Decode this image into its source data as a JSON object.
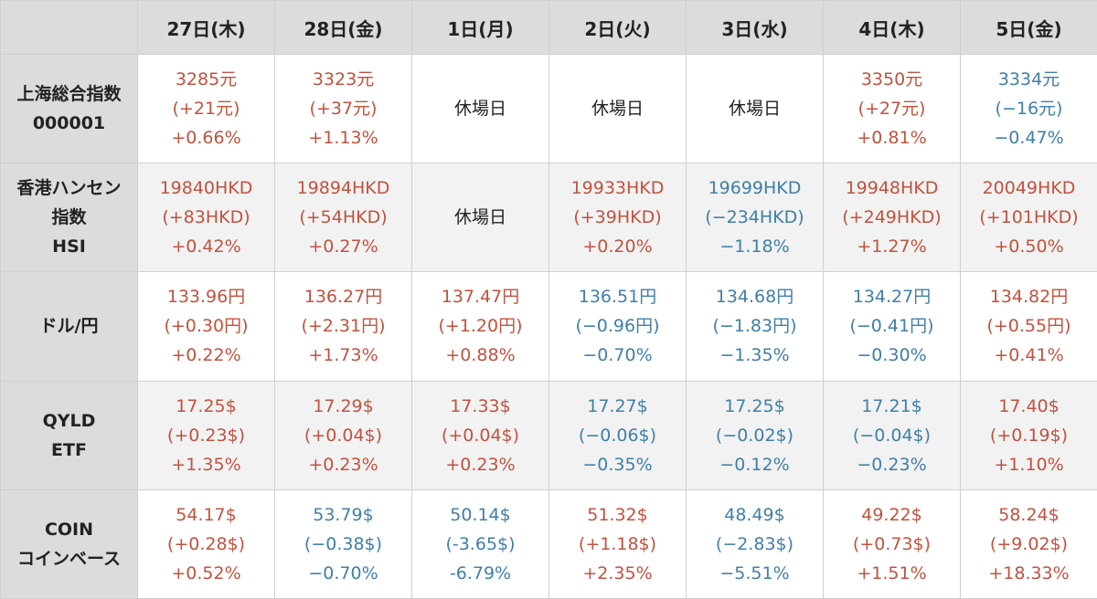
{
  "columns": [
    "",
    "27日(木)",
    "28日(金)",
    "1日(月)",
    "2日(火)",
    "3日(水)",
    "4日(木)",
    "5日(金)"
  ],
  "colors": {
    "up": "#c0533e",
    "down": "#3f7fa8",
    "header_bg": "#dcdcdc"
  },
  "rows": [
    {
      "label": [
        "上海総合指数",
        "000001"
      ],
      "cells": [
        {
          "trend": "up",
          "lines": [
            "3285元",
            "(+21元)",
            "+0.66%"
          ]
        },
        {
          "trend": "up",
          "lines": [
            "3323元",
            "(+37元)",
            "+1.13%"
          ]
        },
        {
          "trend": "closed",
          "lines": [
            "休場日"
          ]
        },
        {
          "trend": "closed",
          "lines": [
            "休場日"
          ]
        },
        {
          "trend": "closed",
          "lines": [
            "休場日"
          ]
        },
        {
          "trend": "up",
          "lines": [
            "3350元",
            "(+27元)",
            "+0.81%"
          ]
        },
        {
          "trend": "down",
          "lines": [
            "3334元",
            "(−16元)",
            "−0.47%"
          ]
        }
      ]
    },
    {
      "label": [
        "香港ハンセン",
        "指数",
        "HSI"
      ],
      "cells": [
        {
          "trend": "up",
          "lines": [
            "19840HKD",
            "(+83HKD)",
            "+0.42%"
          ]
        },
        {
          "trend": "up",
          "lines": [
            "19894HKD",
            "(+54HKD)",
            "+0.27%"
          ]
        },
        {
          "trend": "closed",
          "lines": [
            "休場日"
          ]
        },
        {
          "trend": "up",
          "lines": [
            "19933HKD",
            "(+39HKD)",
            "+0.20%"
          ]
        },
        {
          "trend": "down",
          "lines": [
            "19699HKD",
            "(−234HKD)",
            "−1.18%"
          ]
        },
        {
          "trend": "up",
          "lines": [
            "19948HKD",
            "(+249HKD)",
            "+1.27%"
          ]
        },
        {
          "trend": "up",
          "lines": [
            "20049HKD",
            "(+101HKD)",
            "+0.50%"
          ]
        }
      ]
    },
    {
      "label": [
        "ドル/円"
      ],
      "cells": [
        {
          "trend": "up",
          "lines": [
            "133.96円",
            "(+0.30円)",
            "+0.22%"
          ]
        },
        {
          "trend": "up",
          "lines": [
            "136.27円",
            "(+2.31円)",
            "+1.73%"
          ]
        },
        {
          "trend": "up",
          "lines": [
            "137.47円",
            "(+1.20円)",
            "+0.88%"
          ]
        },
        {
          "trend": "down",
          "lines": [
            "136.51円",
            "(−0.96円)",
            "−0.70%"
          ]
        },
        {
          "trend": "down",
          "lines": [
            "134.68円",
            "(−1.83円)",
            "−1.35%"
          ]
        },
        {
          "trend": "down",
          "lines": [
            "134.27円",
            "(−0.41円)",
            "−0.30%"
          ]
        },
        {
          "trend": "up",
          "lines": [
            "134.82円",
            "(+0.55円)",
            "+0.41%"
          ]
        }
      ]
    },
    {
      "label": [
        "QYLD",
        "ETF"
      ],
      "cells": [
        {
          "trend": "up",
          "lines": [
            "17.25$",
            "(+0.23$)",
            "+1.35%"
          ]
        },
        {
          "trend": "up",
          "lines": [
            "17.29$",
            "(+0.04$)",
            "+0.23%"
          ]
        },
        {
          "trend": "up",
          "lines": [
            "17.33$",
            "(+0.04$)",
            "+0.23%"
          ]
        },
        {
          "trend": "down",
          "lines": [
            "17.27$",
            "(−0.06$)",
            "−0.35%"
          ]
        },
        {
          "trend": "down",
          "lines": [
            "17.25$",
            "(−0.02$)",
            "−0.12%"
          ]
        },
        {
          "trend": "down",
          "lines": [
            "17.21$",
            "(−0.04$)",
            "−0.23%"
          ]
        },
        {
          "trend": "up",
          "lines": [
            "17.40$",
            "(+0.19$)",
            "+1.10%"
          ]
        }
      ]
    },
    {
      "label": [
        "COIN",
        "コインベース"
      ],
      "cells": [
        {
          "trend": "up",
          "lines": [
            "54.17$",
            "(+0.28$)",
            "+0.52%"
          ]
        },
        {
          "trend": "down",
          "lines": [
            "53.79$",
            "(−0.38$)",
            "−0.70%"
          ]
        },
        {
          "trend": "down",
          "lines": [
            "50.14$",
            "(-3.65$)",
            "-6.79%"
          ]
        },
        {
          "trend": "up",
          "lines": [
            "51.32$",
            "(+1.18$)",
            "+2.35%"
          ]
        },
        {
          "trend": "down",
          "lines": [
            "48.49$",
            "(−2.83$)",
            "−5.51%"
          ]
        },
        {
          "trend": "up",
          "lines": [
            "49.22$",
            "(+0.73$)",
            "+1.51%"
          ]
        },
        {
          "trend": "up",
          "lines": [
            "58.24$",
            "(+9.02$)",
            "+18.33%"
          ]
        }
      ]
    }
  ]
}
